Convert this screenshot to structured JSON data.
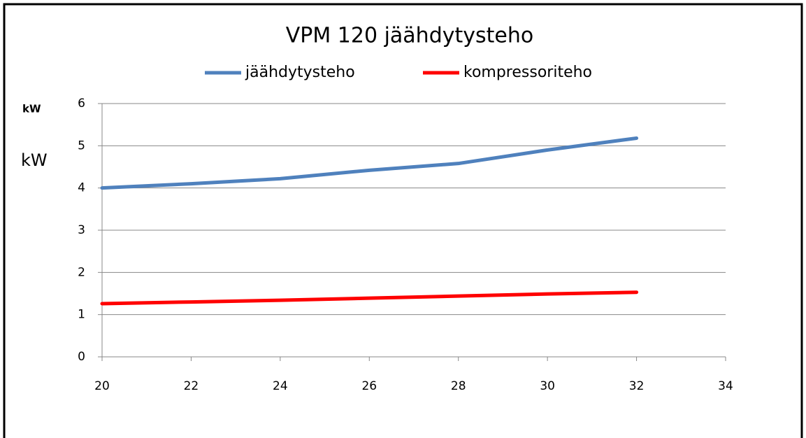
{
  "chart_data": {
    "type": "line",
    "title": "VPM 120 jäähdytysteho",
    "y_unit": "kW",
    "y_label": "kW",
    "x": [
      20,
      22,
      24,
      26,
      28,
      30,
      32
    ],
    "series": [
      {
        "name": "jäähdytysteho",
        "color": "#4f81bd",
        "values": [
          4.0,
          4.1,
          4.22,
          4.42,
          4.58,
          4.9,
          5.18
        ]
      },
      {
        "name": "kompressoriteho",
        "color": "#ff0000",
        "values": [
          1.26,
          1.3,
          1.34,
          1.39,
          1.44,
          1.49,
          1.53
        ]
      }
    ],
    "xlim": [
      20,
      34
    ],
    "xticks": [
      20,
      22,
      24,
      26,
      28,
      30,
      32,
      34
    ],
    "ylim": [
      0,
      6
    ],
    "yticks": [
      0,
      1,
      2,
      3,
      4,
      5,
      6
    ],
    "grid": true,
    "legend": "top"
  }
}
